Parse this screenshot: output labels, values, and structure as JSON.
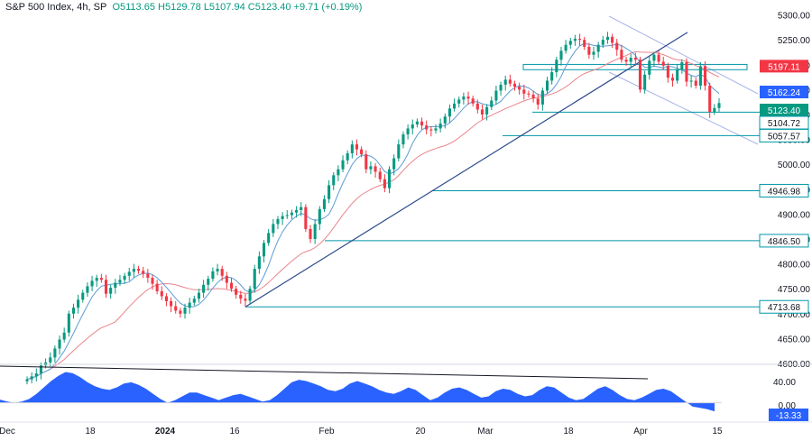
{
  "header": {
    "symbol": "S&P 500 Index, 4h, SP",
    "open": "O5113.65",
    "high": "H5129.78",
    "low": "L5107.94",
    "close": "C5123.40",
    "change": "+9.71 (+0.19%)"
  },
  "colors": {
    "up": "#089981",
    "down": "#f23645",
    "fast_ma": "#5b9bd5",
    "slow_ma": "#e8858c",
    "trendline": "#2c4a8c",
    "level_line": "#0097a7",
    "level_tag": "#0097a7",
    "channel": "#aab6e8",
    "oscillator": "#2962ff",
    "osc_trend": "#131722"
  },
  "chart_data": {
    "type": "candlestick",
    "title": "S&P 500 Index, 4h",
    "price_axis": {
      "ticks": [
        "5300.00",
        "5250.00",
        "5200.00",
        "5150.00",
        "5100.00",
        "5050.00",
        "5000.00",
        "4950.00",
        "4900.00",
        "4850.00",
        "4800.00",
        "4750.00",
        "4700.00",
        "4650.00",
        "4600.00"
      ],
      "range": [
        4600,
        5330
      ]
    },
    "time_axis": {
      "labels": [
        "Dec",
        "18",
        "2024",
        "16",
        "Feb",
        "20",
        "Mar",
        "18",
        "Apr",
        "15"
      ]
    },
    "price_tags": [
      {
        "label": "5197.11",
        "kind": "down"
      },
      {
        "label": "5162.24",
        "kind": "fast_ma"
      },
      {
        "label": "5123.40",
        "kind": "last"
      },
      {
        "label": "5104.72",
        "kind": "level"
      },
      {
        "label": "5057.57",
        "kind": "level"
      },
      {
        "label": "4946.98",
        "kind": "level"
      },
      {
        "label": "4846.50",
        "kind": "level"
      },
      {
        "label": "4713.68",
        "kind": "level"
      }
    ],
    "support_levels": [
      5104.72,
      5057.57,
      4946.98,
      4846.5,
      4713.68
    ],
    "resistance_zone": [
      5190,
      5197
    ],
    "ohlc_closes": [
      4568,
      4574,
      4580,
      4596,
      4602,
      4612,
      4630,
      4648,
      4662,
      4700,
      4712,
      4728,
      4742,
      4755,
      4766,
      4772,
      4768,
      4740,
      4752,
      4762,
      4768,
      4776,
      4784,
      4790,
      4786,
      4780,
      4772,
      4760,
      4745,
      4735,
      4725,
      4715,
      4706,
      4700,
      4712,
      4722,
      4730,
      4742,
      4758,
      4770,
      4785,
      4790,
      4776,
      4762,
      4750,
      4738,
      4730,
      4726,
      4750,
      4790,
      4815,
      4842,
      4862,
      4880,
      4890,
      4896,
      4898,
      4903,
      4908,
      4914,
      4870,
      4850,
      4880,
      4910,
      4930,
      4958,
      4978,
      4990,
      5008,
      5022,
      5040,
      5030,
      5020,
      4990,
      4996,
      4985,
      4970,
      4952,
      4990,
      5012,
      5040,
      5060,
      5072,
      5080,
      5086,
      5078,
      5070,
      5068,
      5072,
      5082,
      5096,
      5112,
      5122,
      5130,
      5136,
      5132,
      5122,
      5110,
      5100,
      5115,
      5128,
      5148,
      5160,
      5170,
      5162,
      5156,
      5150,
      5142,
      5140,
      5132,
      5120,
      5148,
      5168,
      5185,
      5210,
      5228,
      5240,
      5248,
      5252,
      5250,
      5236,
      5220,
      5226,
      5240,
      5250,
      5256,
      5244,
      5230,
      5210,
      5206,
      5214,
      5210,
      5150,
      5180,
      5208,
      5220,
      5206,
      5198,
      5174,
      5168,
      5190,
      5205,
      5166,
      5168,
      5158,
      5197,
      5158,
      5105,
      5113,
      5123
    ],
    "oscillator": {
      "ticks": [
        "40.00",
        "0.00"
      ],
      "last_value": "-13.33",
      "values": [
        5,
        2,
        0,
        2,
        6,
        14,
        24,
        34,
        42,
        48,
        46,
        40,
        32,
        26,
        22,
        20,
        24,
        30,
        32,
        28,
        22,
        14,
        6,
        0,
        4,
        10,
        16,
        16,
        12,
        8,
        4,
        8,
        12,
        14,
        10,
        6,
        2,
        4,
        12,
        22,
        32,
        36,
        34,
        30,
        26,
        20,
        18,
        22,
        30,
        34,
        30,
        26,
        20,
        16,
        14,
        18,
        24,
        20,
        12,
        4,
        8,
        16,
        22,
        24,
        20,
        14,
        8,
        10,
        18,
        22,
        20,
        14,
        10,
        12,
        20,
        26,
        24,
        16,
        8,
        4,
        6,
        14,
        22,
        26,
        20,
        12,
        6,
        4,
        8,
        14,
        20,
        22,
        18,
        10,
        2,
        -6,
        -8,
        -10,
        -13.33
      ]
    }
  }
}
